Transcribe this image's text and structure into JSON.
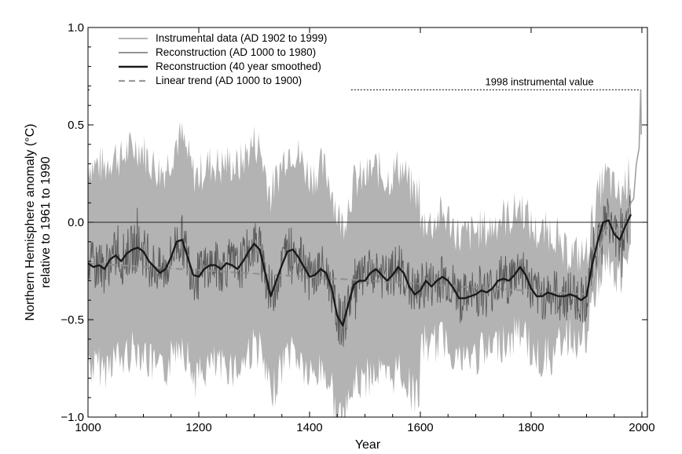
{
  "chart_data": {
    "type": "line",
    "title": "",
    "xlabel": "Year",
    "ylabel": "Northern Hemisphere anomaly (°C)",
    "ylabel2": "relative to 1961 to 1990",
    "xlim": [
      1000,
      2010
    ],
    "ylim": [
      -1.0,
      1.0
    ],
    "xticks": [
      1000,
      1200,
      1400,
      1600,
      1800,
      2000
    ],
    "yticks": [
      1.0,
      0.5,
      0.0,
      -0.5,
      -1.0
    ],
    "ytick_labels": [
      "1.0",
      "0.5",
      "0.0",
      "−0.5",
      "−1.0"
    ],
    "grid": false,
    "legend_position": "top-left",
    "legend": [
      {
        "label": "Instrumental data (AD 1902 to 1999)",
        "color": "#9a9a9a",
        "dash": "solid"
      },
      {
        "label": "Reconstruction (AD 1000 to 1980)",
        "color": "#6f6f6f",
        "dash": "solid"
      },
      {
        "label": "Reconstruction (40 year smoothed)",
        "color": "#1a1a1a",
        "dash": "solid"
      },
      {
        "label": "Linear trend (AD 1000 to 1900)",
        "color": "#9a9a9a",
        "dash": "dashed"
      }
    ],
    "annotation": {
      "text": "1998 instrumental value",
      "y": 0.68
    },
    "colors": {
      "uncertainty": "#b3b3b3",
      "annual": "#5a5a5a",
      "smoothed": "#1a1a1a",
      "trend": "#8f8f8f",
      "instrumental": "#a0a0a0",
      "zero_line": "#222222"
    },
    "series": [
      {
        "name": "Reconstruction (40 year smoothed)",
        "x": [
          1000,
          1010,
          1020,
          1030,
          1040,
          1050,
          1060,
          1070,
          1080,
          1090,
          1100,
          1110,
          1120,
          1130,
          1140,
          1150,
          1160,
          1170,
          1180,
          1190,
          1200,
          1210,
          1220,
          1230,
          1240,
          1250,
          1260,
          1270,
          1280,
          1290,
          1300,
          1310,
          1320,
          1330,
          1340,
          1350,
          1360,
          1370,
          1380,
          1390,
          1400,
          1410,
          1420,
          1430,
          1440,
          1450,
          1460,
          1470,
          1480,
          1490,
          1500,
          1510,
          1520,
          1530,
          1540,
          1550,
          1560,
          1570,
          1580,
          1590,
          1600,
          1610,
          1620,
          1630,
          1640,
          1650,
          1660,
          1670,
          1680,
          1690,
          1700,
          1710,
          1720,
          1730,
          1740,
          1750,
          1760,
          1770,
          1780,
          1790,
          1800,
          1810,
          1820,
          1830,
          1840,
          1850,
          1860,
          1870,
          1880,
          1890,
          1900,
          1910,
          1920,
          1930,
          1940,
          1950,
          1960,
          1970,
          1980
        ],
        "values": [
          -0.21,
          -0.23,
          -0.22,
          -0.24,
          -0.19,
          -0.17,
          -0.2,
          -0.16,
          -0.14,
          -0.13,
          -0.15,
          -0.2,
          -0.23,
          -0.26,
          -0.24,
          -0.18,
          -0.1,
          -0.09,
          -0.18,
          -0.27,
          -0.28,
          -0.24,
          -0.22,
          -0.22,
          -0.24,
          -0.21,
          -0.22,
          -0.24,
          -0.2,
          -0.15,
          -0.11,
          -0.14,
          -0.26,
          -0.38,
          -0.3,
          -0.22,
          -0.15,
          -0.14,
          -0.18,
          -0.23,
          -0.28,
          -0.27,
          -0.24,
          -0.26,
          -0.34,
          -0.48,
          -0.53,
          -0.42,
          -0.32,
          -0.3,
          -0.3,
          -0.26,
          -0.24,
          -0.27,
          -0.3,
          -0.27,
          -0.23,
          -0.26,
          -0.33,
          -0.37,
          -0.35,
          -0.3,
          -0.33,
          -0.3,
          -0.28,
          -0.3,
          -0.34,
          -0.39,
          -0.39,
          -0.38,
          -0.37,
          -0.35,
          -0.36,
          -0.34,
          -0.3,
          -0.29,
          -0.3,
          -0.27,
          -0.23,
          -0.27,
          -0.34,
          -0.38,
          -0.38,
          -0.36,
          -0.37,
          -0.38,
          -0.38,
          -0.37,
          -0.38,
          -0.4,
          -0.38,
          -0.22,
          -0.1,
          0.0,
          0.01,
          -0.06,
          -0.09,
          -0.02,
          0.04
        ]
      },
      {
        "name": "Linear trend (AD 1000 to 1900)",
        "x": [
          1000,
          1900
        ],
        "values": [
          -0.21,
          -0.37
        ]
      },
      {
        "name": "Instrumental data (AD 1902 to 1999)",
        "x": [
          1902,
          1910,
          1920,
          1930,
          1940,
          1950,
          1960,
          1970,
          1980,
          1985,
          1990,
          1995,
          1998,
          1999
        ],
        "values": [
          -0.3,
          -0.35,
          -0.22,
          -0.08,
          0.02,
          -0.05,
          -0.03,
          -0.05,
          0.1,
          0.12,
          0.3,
          0.38,
          0.68,
          0.45
        ]
      }
    ]
  }
}
